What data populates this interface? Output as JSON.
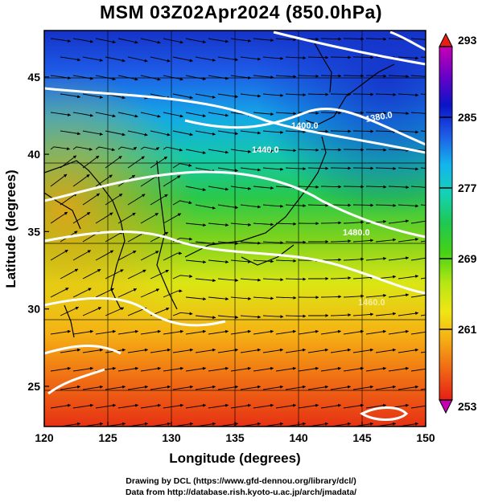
{
  "title": "MSM 03Z02Apr2024 (850.0hPa)",
  "x_axis": {
    "label": "Longitude (degrees)",
    "range": [
      120,
      150
    ],
    "ticks": [
      "120",
      "125",
      "130",
      "135",
      "140",
      "145",
      "150"
    ]
  },
  "y_axis": {
    "label": "Latitude  (degrees)",
    "range": [
      22.4,
      48
    ],
    "ticks": [
      "25",
      "30",
      "35",
      "40",
      "45"
    ]
  },
  "colorbar": {
    "ticks": [
      "253",
      "261",
      "269",
      "277",
      "285",
      "293"
    ],
    "range": [
      253,
      293
    ],
    "colors": [
      "#c800b4",
      "#6a00c8",
      "#0a14c8",
      "#1e5ae6",
      "#14b4ee",
      "#14d2b4",
      "#1ec850",
      "#46d214",
      "#b4e614",
      "#f0e614",
      "#f5aa14",
      "#f06414",
      "#e61e14"
    ]
  },
  "contours": {
    "color": "#ffffff",
    "labels": [
      "1400.0",
      "1380.0",
      "1440.0",
      "1480.0",
      "1460.0"
    ]
  },
  "credits": {
    "line1": "Drawing by DCL (https://www.gfd-dennou.org/library/dcl/)",
    "line2": "Data from http://database.rish.kyoto-u.ac.jp/arch/jmadata/"
  }
}
